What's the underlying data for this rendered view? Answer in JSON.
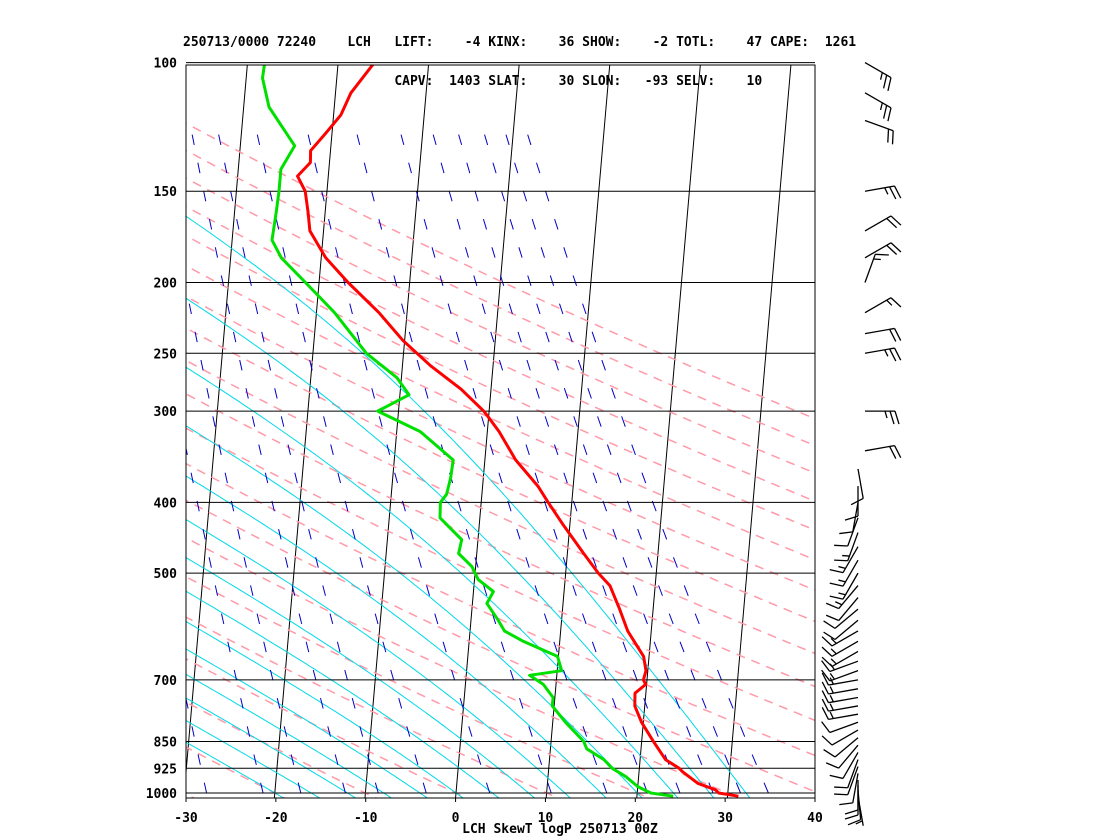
{
  "header": {
    "line1": "250713/0000 72240    LCH   LIFT:    -4 KINX:    36 SHOW:    -2 TOTL:    47 CAPE:  1261",
    "line2": "                           CAPV:  1403 SLAT:    30 SLON:   -93 SELV:    10"
  },
  "chart_data": {
    "type": "line",
    "title": "LCH SkewT logP 250713 00Z",
    "xlabel": "",
    "ylabel": "",
    "x_ticks": [
      "-30",
      "-20",
      "-10",
      "0",
      "10",
      "20",
      "30",
      "40"
    ],
    "p_levels": [
      "100",
      "150",
      "200",
      "250",
      "300",
      "400",
      "500",
      "700",
      "850",
      "925",
      "1000"
    ],
    "y_scale": "log-pressure",
    "grid": true,
    "colors": {
      "temperature": "#ff0000",
      "dewpoint": "#00e000",
      "isotherm": "#000000",
      "dry_adiabat": "#ff9aa8",
      "moist_adiabat": "#00d8e8",
      "mixing_ratio": "#0000c8",
      "wind_barb": "#000000"
    },
    "series": [
      {
        "key": "temperature",
        "points": [
          [
            1010,
            31.2
          ],
          [
            1000,
            29.0
          ],
          [
            990,
            28.6
          ],
          [
            970,
            26.6
          ],
          [
            935,
            24.8
          ],
          [
            925,
            24.4
          ],
          [
            900,
            22.8
          ],
          [
            850,
            21.3
          ],
          [
            800,
            19.8
          ],
          [
            760,
            18.9
          ],
          [
            730,
            18.8
          ],
          [
            710,
            19.9
          ],
          [
            700,
            19.6
          ],
          [
            680,
            19.8
          ],
          [
            650,
            19.4
          ],
          [
            600,
            17.4
          ],
          [
            560,
            16.3
          ],
          [
            520,
            15.0
          ],
          [
            500,
            13.6
          ],
          [
            470,
            11.8
          ],
          [
            430,
            9.3
          ],
          [
            400,
            7.4
          ],
          [
            380,
            6.1
          ],
          [
            350,
            3.4
          ],
          [
            320,
            1.3
          ],
          [
            305,
            -0.1
          ],
          [
            300,
            -0.6
          ],
          [
            280,
            -3.3
          ],
          [
            260,
            -6.9
          ],
          [
            240,
            -10.2
          ],
          [
            220,
            -13.1
          ],
          [
            200,
            -16.8
          ],
          [
            185,
            -19.5
          ],
          [
            170,
            -21.5
          ],
          [
            160,
            -21.9
          ],
          [
            150,
            -22.4
          ],
          [
            143,
            -23.4
          ],
          [
            137,
            -22.1
          ],
          [
            132,
            -22.2
          ],
          [
            125,
            -20.7
          ],
          [
            118,
            -19.2
          ],
          [
            110,
            -18.3
          ],
          [
            100,
            -16.0
          ]
        ]
      },
      {
        "key": "dewpoint",
        "points": [
          [
            1010,
            24.0
          ],
          [
            1000,
            21.5
          ],
          [
            980,
            20.0
          ],
          [
            950,
            18.6
          ],
          [
            925,
            17.0
          ],
          [
            900,
            16.0
          ],
          [
            870,
            14.0
          ],
          [
            850,
            13.6
          ],
          [
            800,
            11.4
          ],
          [
            760,
            9.8
          ],
          [
            740,
            9.8
          ],
          [
            710,
            8.6
          ],
          [
            690,
            7.0
          ],
          [
            680,
            10.5
          ],
          [
            650,
            9.9
          ],
          [
            620,
            6.0
          ],
          [
            600,
            3.8
          ],
          [
            580,
            3.0
          ],
          [
            550,
            1.6
          ],
          [
            530,
            2.2
          ],
          [
            510,
            0.4
          ],
          [
            490,
            -0.4
          ],
          [
            470,
            -2.0
          ],
          [
            450,
            -1.8
          ],
          [
            420,
            -4.4
          ],
          [
            400,
            -4.5
          ],
          [
            390,
            -3.9
          ],
          [
            370,
            -3.6
          ],
          [
            350,
            -3.5
          ],
          [
            320,
            -7.4
          ],
          [
            300,
            -12.3
          ],
          [
            285,
            -9.0
          ],
          [
            270,
            -10.5
          ],
          [
            250,
            -14.1
          ],
          [
            220,
            -18.0
          ],
          [
            200,
            -21.5
          ],
          [
            185,
            -24.4
          ],
          [
            175,
            -25.6
          ],
          [
            160,
            -25.4
          ],
          [
            150,
            -25.3
          ],
          [
            140,
            -25.3
          ],
          [
            130,
            -24.0
          ],
          [
            115,
            -27.2
          ],
          [
            105,
            -28.2
          ],
          [
            100,
            -28.1
          ]
        ]
      }
    ],
    "winds": [
      {
        "p": 1010,
        "dir": 170,
        "spd": 5
      },
      {
        "p": 990,
        "dir": 175,
        "spd": 10
      },
      {
        "p": 975,
        "dir": 180,
        "spd": 10
      },
      {
        "p": 960,
        "dir": 180,
        "spd": 10
      },
      {
        "p": 940,
        "dir": 190,
        "spd": 10
      },
      {
        "p": 920,
        "dir": 200,
        "spd": 10
      },
      {
        "p": 900,
        "dir": 200,
        "spd": 10
      },
      {
        "p": 880,
        "dir": 210,
        "spd": 10
      },
      {
        "p": 860,
        "dir": 220,
        "spd": 10
      },
      {
        "p": 840,
        "dir": 230,
        "spd": 10
      },
      {
        "p": 820,
        "dir": 240,
        "spd": 10
      },
      {
        "p": 800,
        "dir": 250,
        "spd": 10
      },
      {
        "p": 780,
        "dir": 260,
        "spd": 15
      },
      {
        "p": 760,
        "dir": 260,
        "spd": 15
      },
      {
        "p": 740,
        "dir": 260,
        "spd": 15
      },
      {
        "p": 720,
        "dir": 260,
        "spd": 15
      },
      {
        "p": 700,
        "dir": 260,
        "spd": 15
      },
      {
        "p": 680,
        "dir": 250,
        "spd": 15
      },
      {
        "p": 660,
        "dir": 250,
        "spd": 15
      },
      {
        "p": 640,
        "dir": 240,
        "spd": 15
      },
      {
        "p": 620,
        "dir": 240,
        "spd": 15
      },
      {
        "p": 600,
        "dir": 240,
        "spd": 15
      },
      {
        "p": 580,
        "dir": 230,
        "spd": 10
      },
      {
        "p": 560,
        "dir": 230,
        "spd": 10
      },
      {
        "p": 540,
        "dir": 220,
        "spd": 10
      },
      {
        "p": 520,
        "dir": 220,
        "spd": 15
      },
      {
        "p": 500,
        "dir": 210,
        "spd": 15
      },
      {
        "p": 480,
        "dir": 210,
        "spd": 15
      },
      {
        "p": 460,
        "dir": 210,
        "spd": 15
      },
      {
        "p": 440,
        "dir": 200,
        "spd": 15
      },
      {
        "p": 420,
        "dir": 200,
        "spd": 10
      },
      {
        "p": 400,
        "dir": 190,
        "spd": 10
      },
      {
        "p": 380,
        "dir": 180,
        "spd": 10
      },
      {
        "p": 360,
        "dir": 170,
        "spd": 10
      },
      {
        "p": 340,
        "dir": 80,
        "spd": 20
      },
      {
        "p": 300,
        "dir": 90,
        "spd": 25
      },
      {
        "p": 250,
        "dir": 80,
        "spd": 25
      },
      {
        "p": 235,
        "dir": 80,
        "spd": 20
      },
      {
        "p": 220,
        "dir": 60,
        "spd": 15
      },
      {
        "p": 200,
        "dir": 20,
        "spd": 15
      },
      {
        "p": 185,
        "dir": 60,
        "spd": 20
      },
      {
        "p": 170,
        "dir": 60,
        "spd": 20
      },
      {
        "p": 150,
        "dir": 80,
        "spd": 25
      },
      {
        "p": 120,
        "dir": 110,
        "spd": 20
      },
      {
        "p": 110,
        "dir": 120,
        "spd": 25
      },
      {
        "p": 100,
        "dir": 120,
        "spd": 25
      }
    ]
  }
}
